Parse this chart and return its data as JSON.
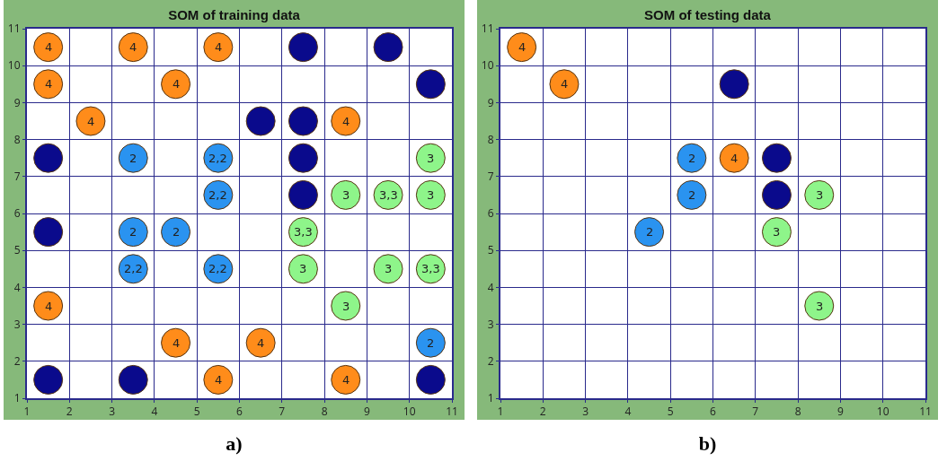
{
  "chart_data": [
    {
      "type": "scatter",
      "title": "SOM of training data",
      "xlim": [
        1,
        11
      ],
      "ylim": [
        1,
        11
      ],
      "xticks": [
        1,
        2,
        3,
        4,
        5,
        6,
        7,
        8,
        9,
        10,
        11
      ],
      "yticks": [
        1,
        2,
        3,
        4,
        5,
        6,
        7,
        8,
        9,
        10,
        11
      ],
      "grid": true,
      "marker": "circle",
      "annotations": [
        "a)",
        {
          "text": "4",
          "x": 1.5,
          "y": 10.5
        },
        {
          "text": "4",
          "x": 3.5,
          "y": 10.5
        },
        {
          "text": "4",
          "x": 5.5,
          "y": 10.5
        },
        {
          "text": "4",
          "x": 1.5,
          "y": 9.5
        },
        {
          "text": "4",
          "x": 4.5,
          "y": 9.5
        },
        {
          "text": "4",
          "x": 2.5,
          "y": 8.5
        },
        {
          "text": "4",
          "x": 8.5,
          "y": 8.5
        },
        {
          "text": "4",
          "x": 1.5,
          "y": 3.5
        },
        {
          "text": "4",
          "x": 4.5,
          "y": 2.5
        },
        {
          "text": "4",
          "x": 6.5,
          "y": 2.5
        },
        {
          "text": "4",
          "x": 5.5,
          "y": 1.5
        },
        {
          "text": "4",
          "x": 8.5,
          "y": 1.5
        },
        {
          "text": "2",
          "x": 3.5,
          "y": 7.5
        },
        {
          "text": "2,2",
          "x": 5.5,
          "y": 7.5
        },
        {
          "text": "2,2",
          "x": 5.5,
          "y": 6.5
        },
        {
          "text": "2",
          "x": 3.5,
          "y": 5.5
        },
        {
          "text": "2",
          "x": 4.5,
          "y": 5.5
        },
        {
          "text": "2,2",
          "x": 3.5,
          "y": 4.5
        },
        {
          "text": "2,2",
          "x": 5.5,
          "y": 4.5
        },
        {
          "text": "2",
          "x": 10.5,
          "y": 2.5
        },
        {
          "text": "3",
          "x": 10.5,
          "y": 7.5
        },
        {
          "text": "3",
          "x": 8.5,
          "y": 6.5
        },
        {
          "text": "3,3",
          "x": 9.5,
          "y": 6.5
        },
        {
          "text": "3",
          "x": 10.5,
          "y": 6.5
        },
        {
          "text": "3,3",
          "x": 7.5,
          "y": 5.5
        },
        {
          "text": "3",
          "x": 7.5,
          "y": 4.5
        },
        {
          "text": "3",
          "x": 9.5,
          "y": 4.5
        },
        {
          "text": "3,3",
          "x": 10.5,
          "y": 4.5
        },
        {
          "text": "3",
          "x": 8.5,
          "y": 3.5
        }
      ],
      "series": [
        {
          "color": "#ff8c1a",
          "x": [
            1.5,
            3.5,
            5.5,
            1.5,
            4.5,
            2.5,
            8.5,
            1.5,
            4.5,
            6.5,
            5.5,
            8.5
          ],
          "values": [
            10.5,
            10.5,
            10.5,
            9.5,
            9.5,
            8.5,
            8.5,
            3.5,
            2.5,
            2.5,
            1.5,
            1.5
          ]
        },
        {
          "color": "#0a0a8c",
          "x": [
            7.5,
            9.5,
            10.5,
            6.5,
            7.5,
            1.5,
            7.5,
            7.5,
            1.5,
            1.5,
            3.5,
            10.5
          ],
          "values": [
            10.5,
            10.5,
            9.5,
            8.5,
            8.5,
            7.5,
            7.5,
            6.5,
            5.5,
            1.5,
            1.5,
            1.5
          ]
        },
        {
          "color": "#2a93f0",
          "x": [
            3.5,
            5.5,
            5.5,
            3.5,
            4.5,
            3.5,
            5.5,
            10.5
          ],
          "values": [
            7.5,
            7.5,
            6.5,
            5.5,
            5.5,
            4.5,
            4.5,
            2.5
          ]
        },
        {
          "color": "#8ef58a",
          "x": [
            10.5,
            8.5,
            9.5,
            10.5,
            7.5,
            7.5,
            9.5,
            10.5,
            8.5
          ],
          "values": [
            7.5,
            6.5,
            6.5,
            6.5,
            5.5,
            4.5,
            4.5,
            4.5,
            3.5
          ]
        }
      ]
    },
    {
      "type": "scatter",
      "title": "SOM of testing data",
      "xlim": [
        1,
        11
      ],
      "ylim": [
        1,
        11
      ],
      "xticks": [
        1,
        2,
        3,
        4,
        5,
        6,
        7,
        8,
        9,
        10,
        11
      ],
      "yticks": [
        1,
        2,
        3,
        4,
        5,
        6,
        7,
        8,
        9,
        10,
        11
      ],
      "grid": true,
      "marker": "circle",
      "annotations": [
        "b)",
        {
          "text": "4",
          "x": 1.5,
          "y": 10.5
        },
        {
          "text": "4",
          "x": 2.5,
          "y": 9.5
        },
        {
          "text": "4",
          "x": 6.5,
          "y": 7.5
        },
        {
          "text": "2",
          "x": 5.5,
          "y": 7.5
        },
        {
          "text": "2",
          "x": 5.5,
          "y": 6.5
        },
        {
          "text": "2",
          "x": 4.5,
          "y": 5.5
        },
        {
          "text": "3",
          "x": 8.5,
          "y": 6.5
        },
        {
          "text": "3",
          "x": 7.5,
          "y": 5.5
        },
        {
          "text": "3",
          "x": 8.5,
          "y": 3.5
        }
      ],
      "series": [
        {
          "color": "#ff8c1a",
          "x": [
            1.5,
            2.5,
            6.5
          ],
          "values": [
            10.5,
            9.5,
            7.5
          ]
        },
        {
          "color": "#0a0a8c",
          "x": [
            6.5,
            7.5,
            7.5
          ],
          "values": [
            9.5,
            7.5,
            6.5
          ]
        },
        {
          "color": "#2a93f0",
          "x": [
            5.5,
            5.5,
            4.5
          ],
          "values": [
            7.5,
            6.5,
            5.5
          ]
        },
        {
          "color": "#8ef58a",
          "x": [
            8.5,
            7.5,
            8.5
          ],
          "values": [
            6.5,
            5.5,
            3.5
          ]
        }
      ]
    }
  ]
}
